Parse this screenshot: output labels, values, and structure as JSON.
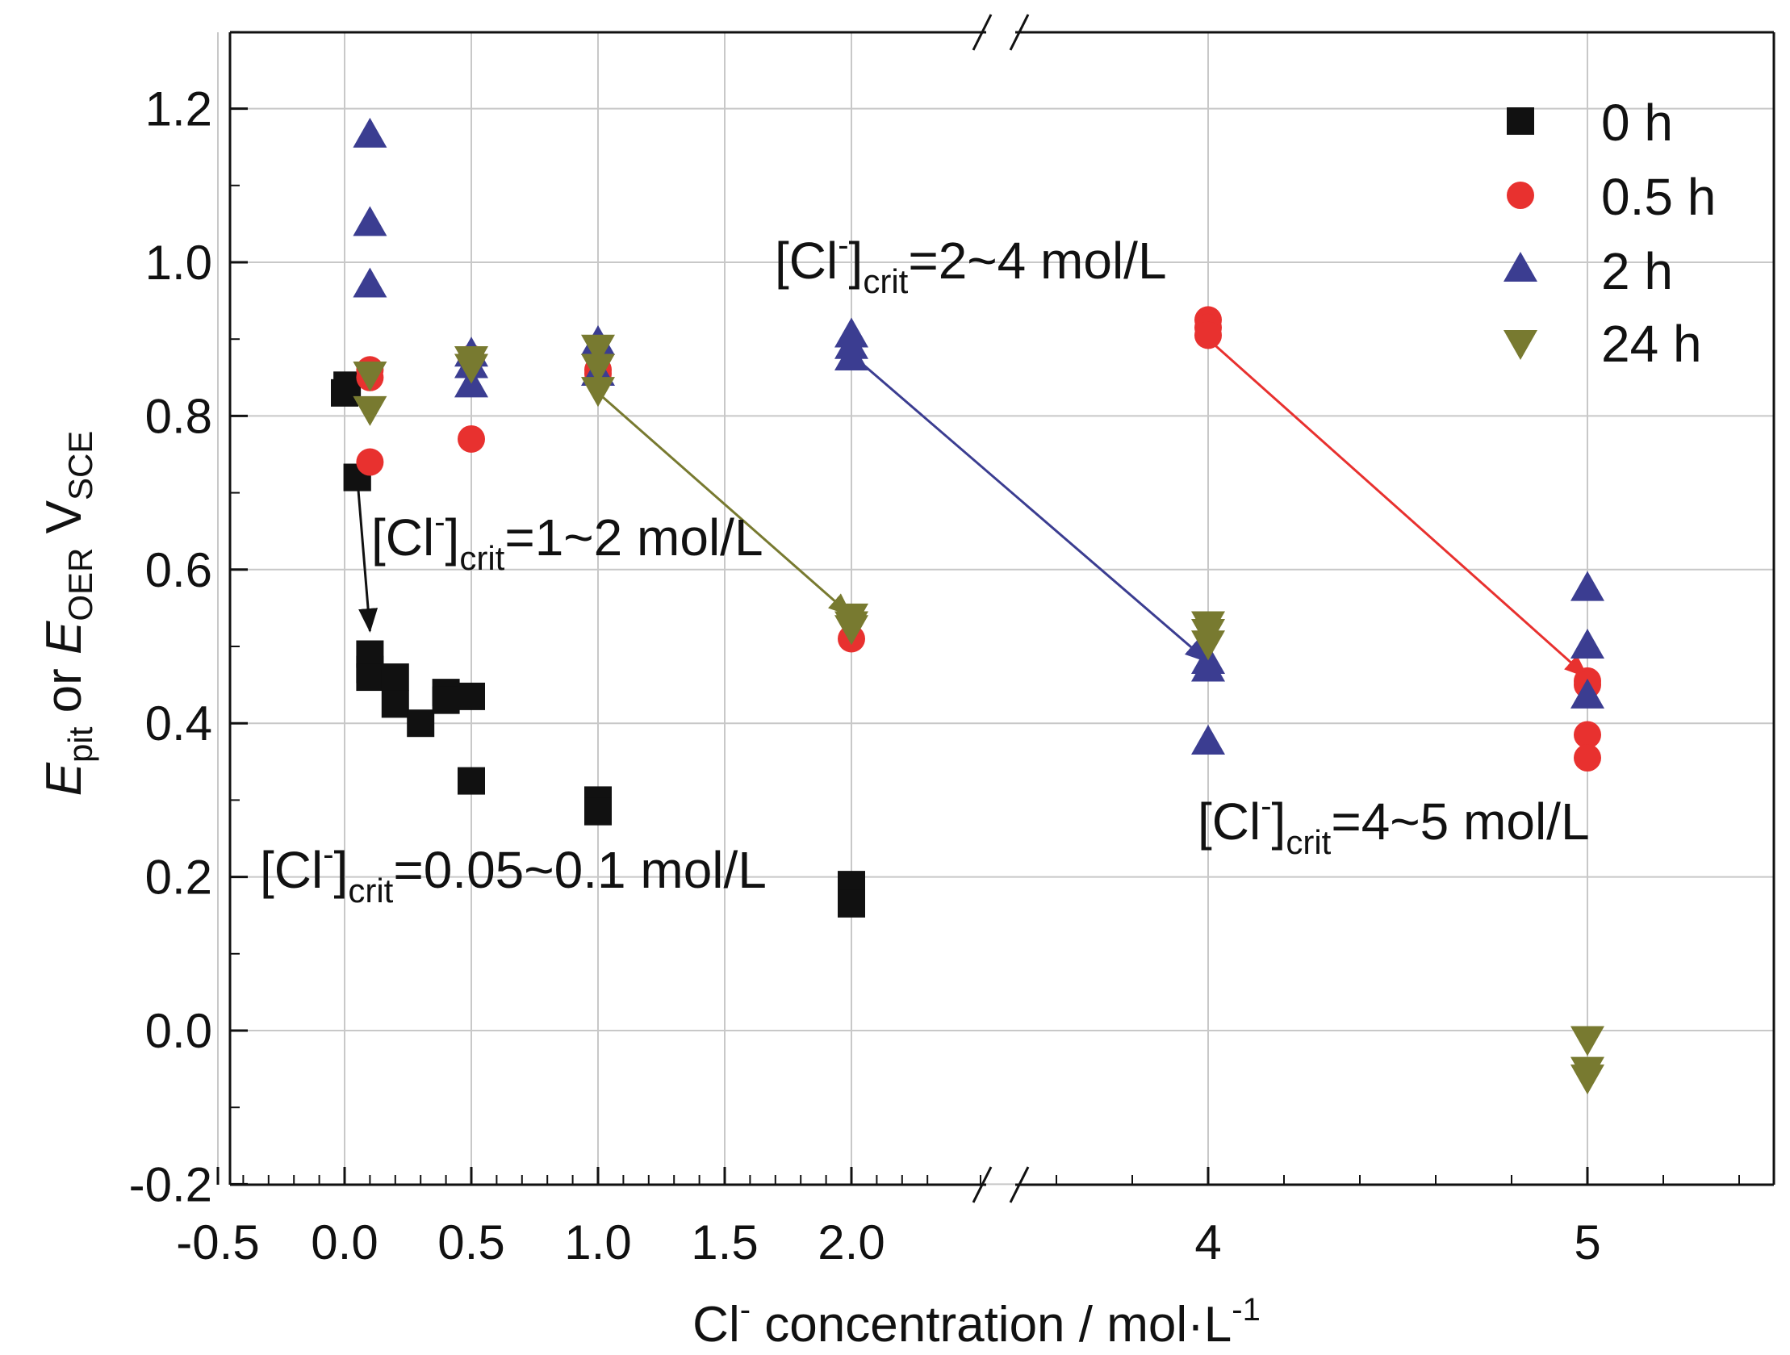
{
  "chart_data": {
    "type": "scatter",
    "ylabel": "E_pit or E_OER V_SCE",
    "xlabel": "Cl⁻ concentration / mol·L⁻¹",
    "ylim": [
      -0.2,
      1.3
    ],
    "x_ticks_linear": [
      "-0.5",
      "0.0",
      "0.5",
      "1.0",
      "1.5",
      "2.0"
    ],
    "x_ticks_broken": [
      "4",
      "5"
    ],
    "y_ticks": [
      "-0.2",
      "0.0",
      "0.2",
      "0.4",
      "0.6",
      "0.8",
      "1.0",
      "1.2"
    ],
    "axis_break": "between 2 and 4",
    "grid": true,
    "legend_position": "top-right",
    "series": [
      {
        "name": "0 h",
        "marker": "square",
        "color": "#111111",
        "x": [
          0.0,
          0.01,
          0.05,
          0.05,
          0.1,
          0.1,
          0.1,
          0.2,
          0.2,
          0.3,
          0.4,
          0.4,
          0.5,
          0.5,
          1.0,
          1.0,
          2.0,
          2.0
        ],
        "y": [
          0.83,
          0.84,
          0.72,
          0.72,
          0.49,
          0.47,
          0.46,
          0.46,
          0.425,
          0.4,
          0.44,
          0.43,
          0.435,
          0.325,
          0.3,
          0.285,
          0.19,
          0.165
        ]
      },
      {
        "name": "0.5 h",
        "marker": "circle",
        "color": "#e8312f",
        "x": [
          0.1,
          0.1,
          0.1,
          0.5,
          0.5,
          1.0,
          1.0,
          2.0,
          4,
          4,
          4,
          5,
          5,
          5,
          5
        ],
        "y": [
          0.86,
          0.85,
          0.74,
          0.875,
          0.77,
          0.86,
          0.855,
          0.51,
          0.925,
          0.915,
          0.905,
          0.455,
          0.45,
          0.385,
          0.355
        ]
      },
      {
        "name": "2 h",
        "marker": "triangle-up",
        "color": "#3b3d91",
        "x": [
          0.1,
          0.1,
          0.1,
          0.5,
          0.5,
          0.5,
          1.0,
          1.0,
          2.0,
          2.0,
          2.0,
          4,
          4,
          4,
          5,
          5,
          5
        ],
        "y": [
          1.165,
          1.05,
          0.97,
          0.88,
          0.865,
          0.84,
          0.895,
          0.855,
          0.905,
          0.89,
          0.875,
          0.48,
          0.47,
          0.375,
          0.575,
          0.5,
          0.435
        ]
      },
      {
        "name": "24 h",
        "marker": "triangle-down",
        "color": "#787a30",
        "x": [
          0.1,
          0.1,
          0.5,
          0.5,
          1.0,
          1.0,
          1.0,
          2.0,
          2.0,
          2.0,
          4,
          4,
          4,
          5,
          5,
          5
        ],
        "y": [
          0.855,
          0.81,
          0.875,
          0.865,
          0.89,
          0.865,
          0.835,
          0.54,
          0.53,
          0.525,
          0.53,
          0.52,
          0.505,
          -0.01,
          -0.05,
          -0.06
        ]
      }
    ],
    "annotations": [
      {
        "text_main": "[Cl",
        "text_sup": "-",
        "text_end": "]",
        "text_sub": "crit",
        "text_val": "=0.05~0.1 mol/L"
      },
      {
        "text_main": "[Cl",
        "text_sup": "-",
        "text_end": "]",
        "text_sub": "crit",
        "text_val": "=1~2 mol/L"
      },
      {
        "text_main": "[Cl",
        "text_sup": "-",
        "text_end": "]",
        "text_sub": "crit",
        "text_val": "=2~4 mol/L"
      },
      {
        "text_main": "[Cl",
        "text_sup": "-",
        "text_end": "]",
        "text_sub": "crit",
        "text_val": "=4~5 mol/L"
      }
    ],
    "arrows": [
      {
        "from": [
          0.05,
          0.72
        ],
        "to": [
          0.1,
          0.52
        ],
        "color": "#111111"
      },
      {
        "from": [
          1.0,
          0.83
        ],
        "to": [
          2.0,
          0.54
        ],
        "color": "#787a30"
      },
      {
        "from": [
          2.0,
          0.88
        ],
        "to": [
          4,
          0.48
        ],
        "color": "#3b3d91"
      },
      {
        "from": [
          4,
          0.9
        ],
        "to": [
          5,
          0.46
        ],
        "color": "#e8312f"
      }
    ]
  }
}
